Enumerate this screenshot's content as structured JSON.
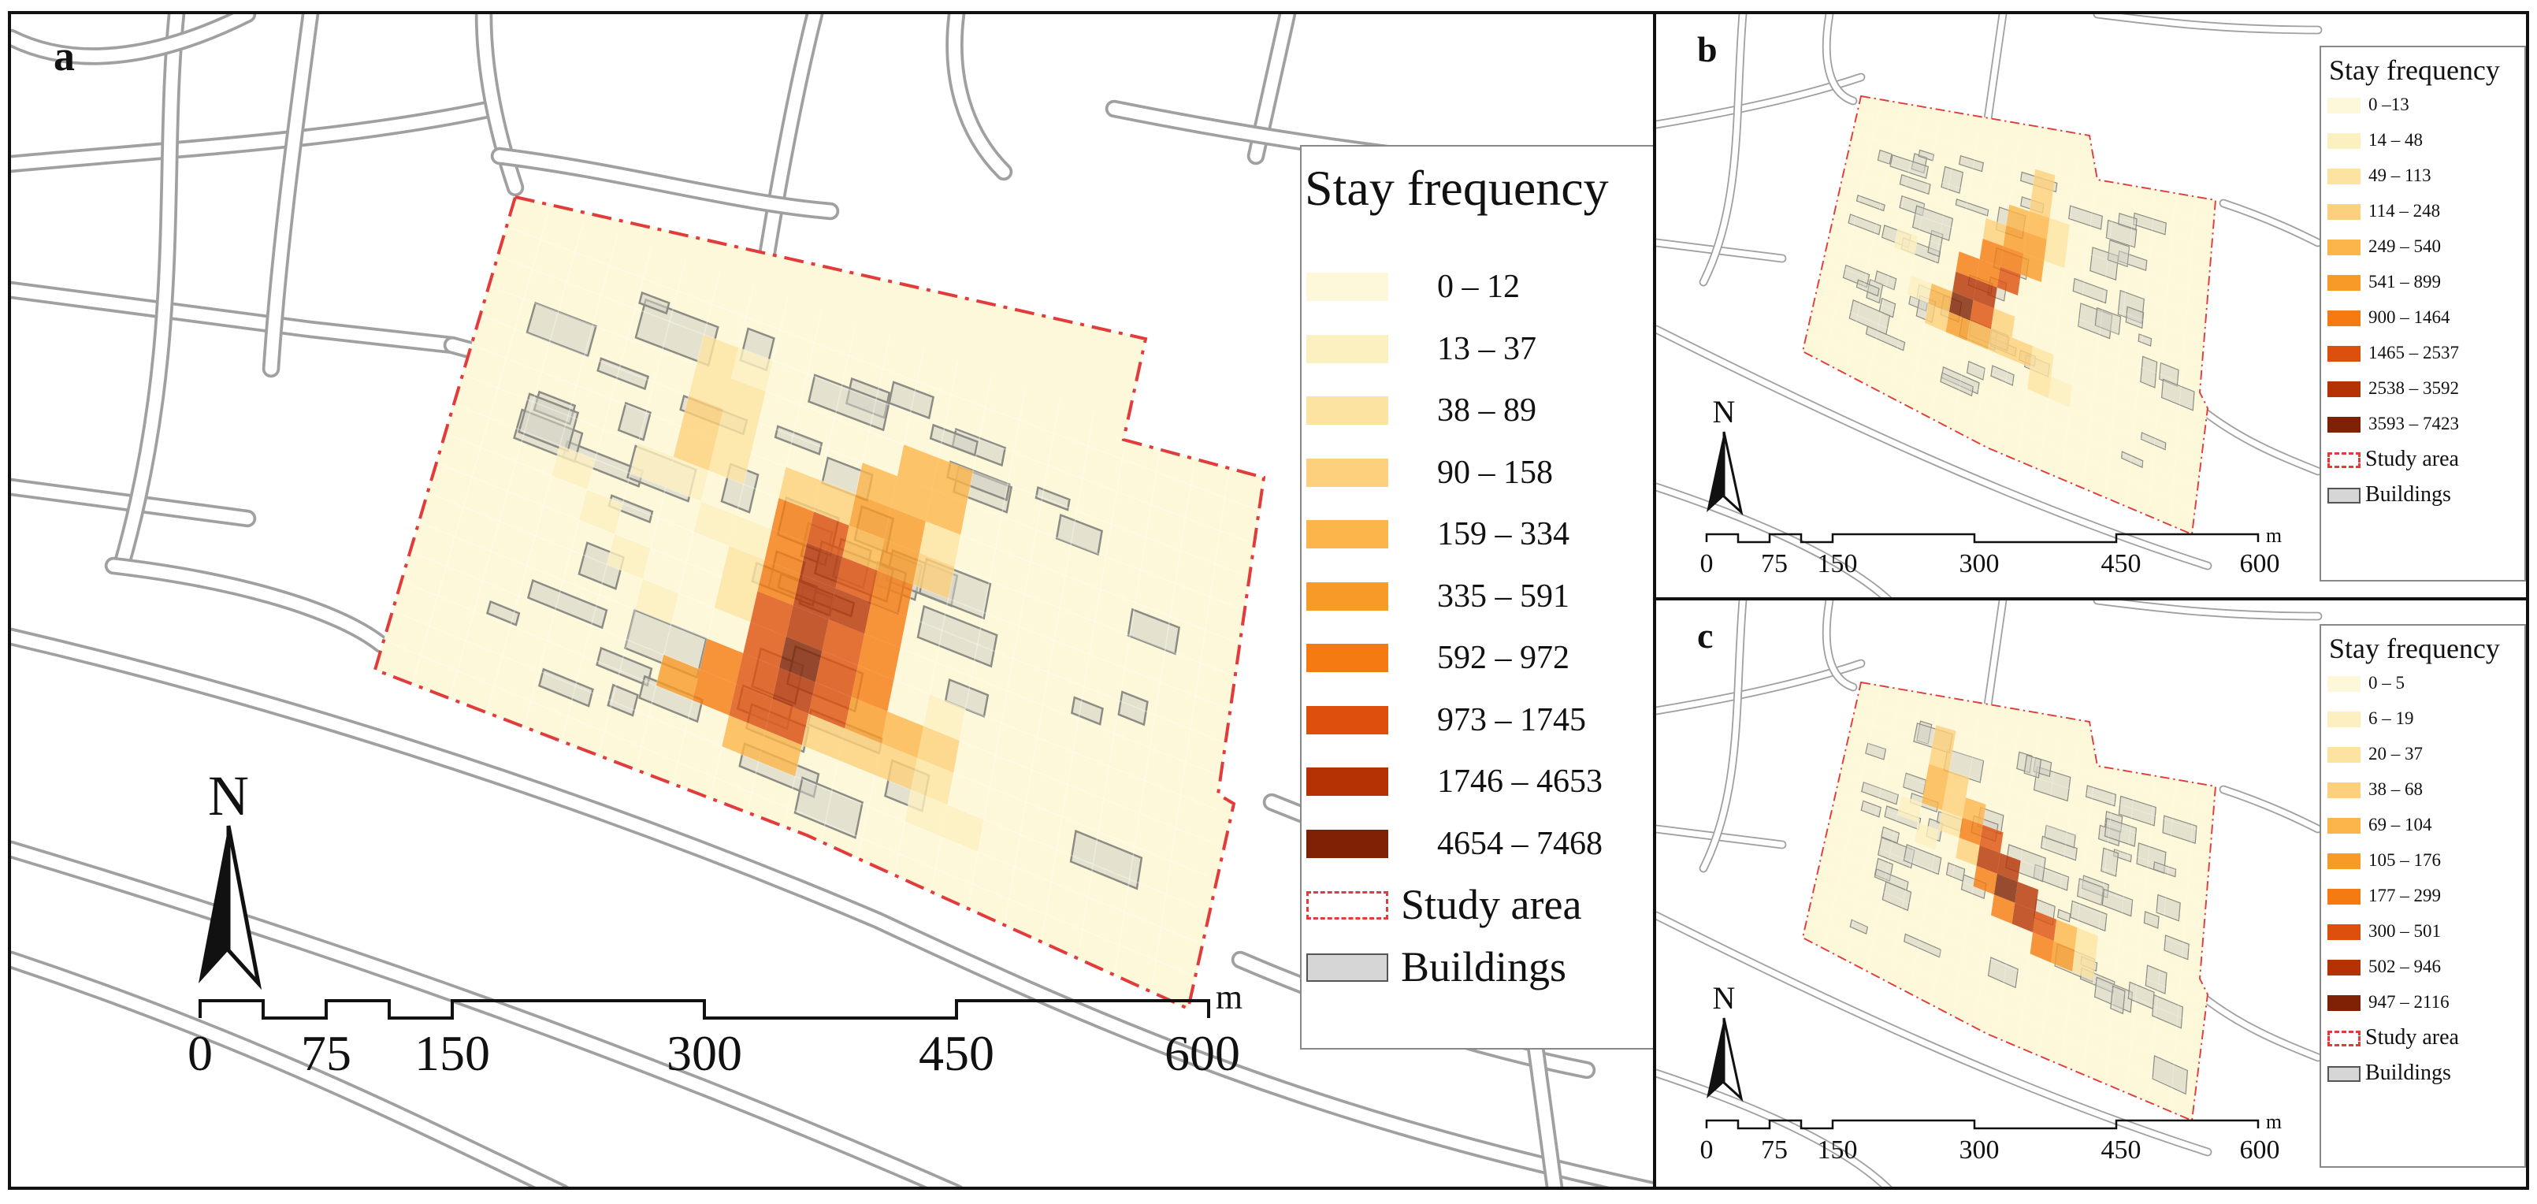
{
  "panels": [
    {
      "letter": "a",
      "legend": {
        "title": "Stay frequency",
        "classes": [
          "0 – 12",
          "13 – 37",
          "38 – 89",
          "90 – 158",
          "159 – 334",
          "335 – 591",
          "592 – 972",
          "973 – 1745",
          "1746 – 4653",
          "4654 – 7468"
        ],
        "study_area_label": "Study area",
        "buildings_label": "Buildings"
      },
      "north_label": "N",
      "scale": {
        "ticks": [
          "0",
          "75",
          "150",
          "300",
          "450",
          "600"
        ],
        "unit": "m"
      }
    },
    {
      "letter": "b",
      "legend": {
        "title": "Stay frequency",
        "classes": [
          "0 –13",
          "14 – 48",
          "49 – 113",
          "114 – 248",
          "249 – 540",
          "541 – 899",
          "900 – 1464",
          "1465 – 2537",
          "2538 – 3592",
          "3593 – 7423"
        ],
        "study_area_label": "Study area",
        "buildings_label": "Buildings"
      },
      "north_label": "N",
      "scale": {
        "ticks": [
          "0",
          "75",
          "150",
          "300",
          "450",
          "600"
        ],
        "unit": "m"
      }
    },
    {
      "letter": "c",
      "legend": {
        "title": "Stay frequency",
        "classes": [
          "0 – 5",
          "6 – 19",
          "20 – 37",
          "38 – 68",
          "69 – 104",
          "105 – 176",
          "177 – 299",
          "300 – 501",
          "502 – 946",
          "947 – 2116"
        ],
        "study_area_label": "Study area",
        "buildings_label": "Buildings"
      },
      "north_label": "N",
      "scale": {
        "ticks": [
          "0",
          "75",
          "150",
          "300",
          "450",
          "600"
        ],
        "unit": "m"
      }
    }
  ],
  "colors": {
    "ramp": [
      "#fdf8d9",
      "#fdf0c0",
      "#fde3a2",
      "#fcd07c",
      "#fbb54b",
      "#f89a28",
      "#f57a12",
      "#dd4f0c",
      "#b53205",
      "#7e2104"
    ],
    "study_area": "#e23b3b",
    "buildings": "#d6d6d6",
    "roads": "#9a9a9a"
  },
  "hotspots": {
    "a": [
      [
        6,
        2,
        2
      ],
      [
        6,
        3,
        2
      ],
      [
        6,
        4,
        3
      ],
      [
        6,
        5,
        3
      ],
      [
        7,
        2,
        1
      ],
      [
        7,
        3,
        2
      ],
      [
        7,
        4,
        2
      ],
      [
        7,
        5,
        2
      ],
      [
        12,
        3,
        4
      ],
      [
        12,
        4,
        4
      ],
      [
        13,
        3,
        4
      ],
      [
        13,
        4,
        4
      ],
      [
        11,
        4,
        4
      ],
      [
        11,
        5,
        5
      ],
      [
        12,
        5,
        5
      ],
      [
        12,
        6,
        5
      ],
      [
        11,
        6,
        4
      ],
      [
        9,
        6,
        6
      ],
      [
        9,
        7,
        6
      ],
      [
        10,
        6,
        7
      ],
      [
        10,
        7,
        8
      ],
      [
        10,
        8,
        8
      ],
      [
        10,
        9,
        8
      ],
      [
        11,
        7,
        7
      ],
      [
        11,
        8,
        8
      ],
      [
        11,
        9,
        7
      ],
      [
        9,
        8,
        6
      ],
      [
        9,
        9,
        7
      ],
      [
        9,
        10,
        7
      ],
      [
        10,
        10,
        9
      ],
      [
        10,
        11,
        8
      ],
      [
        11,
        10,
        7
      ],
      [
        11,
        11,
        7
      ],
      [
        12,
        7,
        6
      ],
      [
        12,
        8,
        6
      ],
      [
        12,
        9,
        6
      ],
      [
        12,
        10,
        6
      ],
      [
        8,
        11,
        6
      ],
      [
        8,
        12,
        6
      ],
      [
        9,
        11,
        7
      ],
      [
        9,
        12,
        7
      ],
      [
        10,
        12,
        7
      ],
      [
        7,
        12,
        5
      ],
      [
        12,
        11,
        5
      ],
      [
        13,
        11,
        4
      ],
      [
        14,
        11,
        3
      ],
      [
        13,
        12,
        3
      ],
      [
        14,
        12,
        2
      ],
      [
        9,
        13,
        4
      ],
      [
        10,
        13,
        4
      ],
      [
        5,
        6,
        1
      ],
      [
        6,
        6,
        1
      ],
      [
        7,
        7,
        1
      ],
      [
        8,
        7,
        1
      ],
      [
        3,
        7,
        1
      ],
      [
        4,
        8,
        1
      ],
      [
        14,
        13,
        1
      ],
      [
        15,
        13,
        1
      ],
      [
        14,
        10,
        1
      ],
      [
        5,
        9,
        1
      ],
      [
        6,
        10,
        1
      ],
      [
        11,
        12,
        3
      ],
      [
        12,
        12,
        3
      ],
      [
        9,
        5,
        3
      ],
      [
        10,
        5,
        3
      ],
      [
        13,
        5,
        2
      ],
      [
        13,
        6,
        3
      ],
      [
        8,
        8,
        2
      ],
      [
        8,
        9,
        2
      ]
    ],
    "b": [
      [
        9,
        1,
        3
      ],
      [
        9,
        2,
        3
      ],
      [
        8,
        3,
        4
      ],
      [
        9,
        3,
        4
      ],
      [
        8,
        4,
        5
      ],
      [
        9,
        4,
        5
      ],
      [
        7,
        5,
        6
      ],
      [
        8,
        5,
        6
      ],
      [
        9,
        5,
        5
      ],
      [
        7,
        6,
        6
      ],
      [
        8,
        6,
        7
      ],
      [
        6,
        6,
        6
      ],
      [
        6,
        7,
        8
      ],
      [
        7,
        7,
        8
      ],
      [
        6,
        8,
        9
      ],
      [
        7,
        8,
        7
      ],
      [
        5,
        8,
        4
      ],
      [
        5,
        9,
        3
      ],
      [
        6,
        9,
        5
      ],
      [
        7,
        9,
        4
      ],
      [
        8,
        9,
        3
      ],
      [
        8,
        8,
        3
      ],
      [
        9,
        9,
        3
      ],
      [
        10,
        9,
        2
      ],
      [
        10,
        10,
        2
      ],
      [
        11,
        10,
        1
      ],
      [
        4,
        8,
        1
      ],
      [
        3,
        6,
        1
      ],
      [
        10,
        3,
        2
      ],
      [
        10,
        4,
        2
      ],
      [
        7,
        4,
        3
      ]
    ],
    "c": [
      [
        4,
        1,
        3
      ],
      [
        4,
        2,
        3
      ],
      [
        4,
        3,
        4
      ],
      [
        4,
        4,
        4
      ],
      [
        5,
        3,
        3
      ],
      [
        5,
        4,
        3
      ],
      [
        6,
        4,
        4
      ],
      [
        6,
        5,
        6
      ],
      [
        7,
        5,
        7
      ],
      [
        7,
        6,
        8
      ],
      [
        8,
        6,
        8
      ],
      [
        8,
        7,
        9
      ],
      [
        9,
        7,
        8
      ],
      [
        9,
        8,
        8
      ],
      [
        10,
        8,
        7
      ],
      [
        10,
        9,
        6
      ],
      [
        11,
        9,
        5
      ],
      [
        11,
        8,
        4
      ],
      [
        8,
        8,
        6
      ],
      [
        7,
        7,
        6
      ],
      [
        5,
        5,
        2
      ],
      [
        3,
        5,
        1
      ],
      [
        4,
        6,
        1
      ],
      [
        12,
        9,
        2
      ],
      [
        12,
        8,
        2
      ],
      [
        6,
        6,
        3
      ]
    ]
  }
}
